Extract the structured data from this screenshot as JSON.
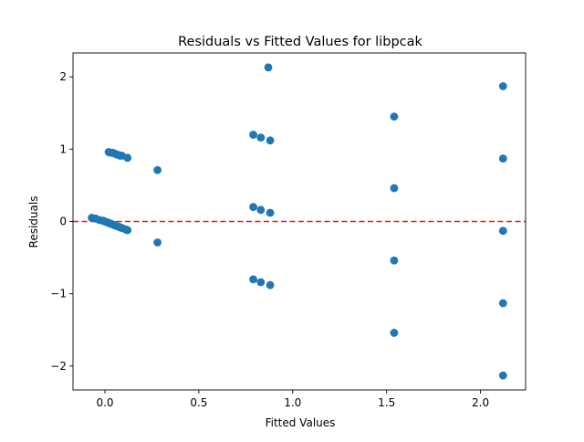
{
  "chart_data": {
    "type": "scatter",
    "title": "Residuals vs Fitted Values for libpcak",
    "xlabel": "Fitted Values",
    "ylabel": "Residuals",
    "xlim": [
      -0.17,
      2.24
    ],
    "ylim": [
      -2.33,
      2.33
    ],
    "xticks": [
      0.0,
      0.5,
      1.0,
      1.5,
      2.0
    ],
    "xtick_labels": [
      "0.0",
      "0.5",
      "1.0",
      "1.5",
      "2.0"
    ],
    "yticks": [
      -2,
      -1,
      0,
      1,
      2
    ],
    "ytick_labels": [
      "−2",
      "−1",
      "0",
      "1",
      "2"
    ],
    "grid": false,
    "reference_line": {
      "y": 0,
      "style": "dashed",
      "color": "#e41a1c"
    },
    "point_color": "#1f77b4",
    "points": [
      {
        "x": -0.07,
        "y": 0.05
      },
      {
        "x": -0.05,
        "y": 0.04
      },
      {
        "x": -0.03,
        "y": 0.02
      },
      {
        "x": -0.01,
        "y": 0.01
      },
      {
        "x": 0.0,
        "y": 0.0
      },
      {
        "x": 0.01,
        "y": -0.01
      },
      {
        "x": 0.02,
        "y": -0.02
      },
      {
        "x": 0.03,
        "y": -0.03
      },
      {
        "x": 0.04,
        "y": -0.04
      },
      {
        "x": 0.05,
        "y": -0.05
      },
      {
        "x": 0.06,
        "y": -0.06
      },
      {
        "x": 0.07,
        "y": -0.07
      },
      {
        "x": 0.08,
        "y": -0.08
      },
      {
        "x": 0.09,
        "y": -0.09
      },
      {
        "x": 0.11,
        "y": -0.11
      },
      {
        "x": 0.12,
        "y": -0.12
      },
      {
        "x": 0.02,
        "y": 0.96
      },
      {
        "x": 0.03,
        "y": 0.95
      },
      {
        "x": 0.04,
        "y": 0.95
      },
      {
        "x": 0.05,
        "y": 0.94
      },
      {
        "x": 0.06,
        "y": 0.93
      },
      {
        "x": 0.07,
        "y": 0.92
      },
      {
        "x": 0.08,
        "y": 0.91
      },
      {
        "x": 0.09,
        "y": 0.91
      },
      {
        "x": 0.12,
        "y": 0.88
      },
      {
        "x": 0.28,
        "y": 0.71
      },
      {
        "x": 0.28,
        "y": -0.29
      },
      {
        "x": 0.79,
        "y": 1.2
      },
      {
        "x": 0.79,
        "y": 0.2
      },
      {
        "x": 0.79,
        "y": -0.8
      },
      {
        "x": 0.83,
        "y": 1.16
      },
      {
        "x": 0.83,
        "y": 0.16
      },
      {
        "x": 0.83,
        "y": -0.84
      },
      {
        "x": 0.87,
        "y": 2.13
      },
      {
        "x": 0.88,
        "y": 1.12
      },
      {
        "x": 0.88,
        "y": 0.12
      },
      {
        "x": 0.88,
        "y": -0.88
      },
      {
        "x": 1.54,
        "y": 1.45
      },
      {
        "x": 1.54,
        "y": 0.46
      },
      {
        "x": 1.54,
        "y": -0.54
      },
      {
        "x": 1.54,
        "y": -1.54
      },
      {
        "x": 2.12,
        "y": 1.87
      },
      {
        "x": 2.12,
        "y": 0.87
      },
      {
        "x": 2.12,
        "y": -0.13
      },
      {
        "x": 2.12,
        "y": -1.13
      },
      {
        "x": 2.12,
        "y": -2.13
      }
    ]
  }
}
